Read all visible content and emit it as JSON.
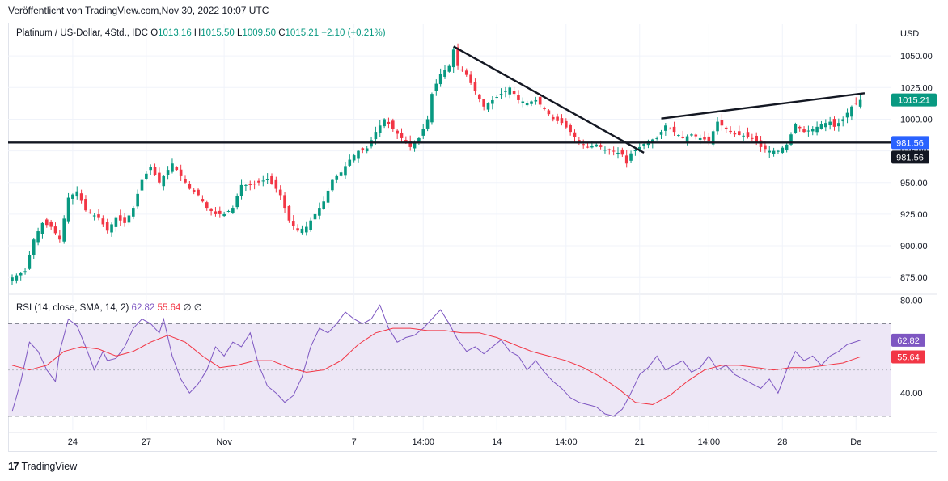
{
  "header": {
    "published": "Veröffentlicht von TradingView.com,Nov 30, 2022 10:07 UTC"
  },
  "legend": {
    "symbol": "Platinum / US-Dollar, 4Std., IDC",
    "open_label": "O",
    "open": "1013.16",
    "high_label": "H",
    "high": "1015.50",
    "low_label": "L",
    "low": "1009.50",
    "close_label": "C",
    "close": "1015.21",
    "change": "+2.10 (+0.21%)"
  },
  "rsi_legend": {
    "name": "RSI (14, close, SMA, 14, 2)",
    "rsi": "62.82",
    "sma": "55.64",
    "icon_a": "∅",
    "icon_b": "∅"
  },
  "footer": {
    "brand": "TradingView",
    "logo": "17"
  },
  "colors": {
    "up": "#089981",
    "down": "#f23645",
    "rsi_line": "#7e57c2",
    "rsi_sma": "#f23645",
    "rsi_band": "#ede7f6",
    "trendline": "#131722",
    "grid": "#f0f3fa"
  },
  "chart_data": [
    {
      "type": "candlestick",
      "currency_label": "USD",
      "y_ticks": [
        875,
        900,
        925,
        950,
        975,
        1000,
        1025,
        1050
      ],
      "y_tick_labels": [
        "875.00",
        "900.00",
        "925.00",
        "950.00",
        "975.00",
        "1000.00",
        "1025.00",
        "1050.00"
      ],
      "ylim": [
        863,
        1075
      ],
      "x_tick_labels": [
        {
          "label": "24",
          "bar": 14
        },
        {
          "label": "27",
          "bar": 31
        },
        {
          "label": "Nov",
          "bar": 49
        },
        {
          "label": "7",
          "bar": 79
        },
        {
          "label": "14:00",
          "bar": 95
        },
        {
          "label": "14",
          "bar": 112
        },
        {
          "label": "14:00",
          "bar": 128
        },
        {
          "label": "21",
          "bar": 145
        },
        {
          "label": "14:00",
          "bar": 161
        },
        {
          "label": "28",
          "bar": 178
        },
        {
          "label": "De",
          "bar": 195
        }
      ],
      "bar_count": 197,
      "anchors": [
        [
          0,
          875
        ],
        [
          3,
          880
        ],
        [
          5,
          905
        ],
        [
          7,
          918
        ],
        [
          9,
          915
        ],
        [
          11,
          905
        ],
        [
          13,
          938
        ],
        [
          15,
          943
        ],
        [
          17,
          928
        ],
        [
          20,
          922
        ],
        [
          22,
          912
        ],
        [
          24,
          922
        ],
        [
          26,
          918
        ],
        [
          28,
          930
        ],
        [
          30,
          952
        ],
        [
          32,
          962
        ],
        [
          34,
          950
        ],
        [
          37,
          965
        ],
        [
          39,
          955
        ],
        [
          41,
          945
        ],
        [
          43,
          940
        ],
        [
          45,
          930
        ],
        [
          47,
          925
        ],
        [
          49,
          925
        ],
        [
          51,
          930
        ],
        [
          53,
          948
        ],
        [
          55,
          948
        ],
        [
          57,
          950
        ],
        [
          59,
          953
        ],
        [
          61,
          945
        ],
        [
          62,
          940
        ],
        [
          64,
          920
        ],
        [
          66,
          912
        ],
        [
          68,
          915
        ],
        [
          70,
          925
        ],
        [
          72,
          935
        ],
        [
          74,
          952
        ],
        [
          76,
          958
        ],
        [
          78,
          968
        ],
        [
          80,
          975
        ],
        [
          82,
          977
        ],
        [
          84,
          990
        ],
        [
          86,
          1000
        ],
        [
          88,
          992
        ],
        [
          90,
          985
        ],
        [
          92,
          978
        ],
        [
          94,
          985
        ],
        [
          96,
          1000
        ],
        [
          97,
          1020
        ],
        [
          99,
          1036
        ],
        [
          101,
          1042
        ],
        [
          102,
          1055
        ],
        [
          103,
          1042
        ],
        [
          105,
          1035
        ],
        [
          107,
          1022
        ],
        [
          109,
          1010
        ],
        [
          111,
          1015
        ],
        [
          113,
          1020
        ],
        [
          115,
          1025
        ],
        [
          117,
          1015
        ],
        [
          119,
          1013
        ],
        [
          121,
          1015
        ],
        [
          123,
          1008
        ],
        [
          125,
          1000
        ],
        [
          127,
          997
        ],
        [
          129,
          990
        ],
        [
          131,
          982
        ],
        [
          133,
          978
        ],
        [
          135,
          980
        ],
        [
          137,
          976
        ],
        [
          139,
          975
        ],
        [
          141,
          972
        ],
        [
          142,
          965
        ],
        [
          143,
          973
        ],
        [
          145,
          978
        ],
        [
          147,
          983
        ],
        [
          149,
          985
        ],
        [
          151,
          995
        ],
        [
          153,
          990
        ],
        [
          155,
          985
        ],
        [
          157,
          988
        ],
        [
          159,
          985
        ],
        [
          161,
          983
        ],
        [
          163,
          998
        ],
        [
          165,
          992
        ],
        [
          167,
          988
        ],
        [
          169,
          987
        ],
        [
          171,
          985
        ],
        [
          173,
          978
        ],
        [
          175,
          975
        ],
        [
          177,
          975
        ],
        [
          179,
          980
        ],
        [
          181,
          996
        ],
        [
          183,
          990
        ],
        [
          185,
          992
        ],
        [
          187,
          996
        ],
        [
          189,
          998
        ],
        [
          190,
          994
        ],
        [
          192,
          1000
        ],
        [
          194,
          1010
        ],
        [
          196,
          1015.21
        ]
      ],
      "last_price_label": "1015.21",
      "horizontal_level": 981.56,
      "horizontal_level_label": "981.56",
      "trendlines": [
        {
          "from": [
            102,
            1057.5
          ],
          "to": [
            146,
            973.5
          ]
        },
        {
          "from": [
            150,
            1000.5
          ],
          "to": [
            197,
            1020.5
          ]
        }
      ]
    },
    {
      "type": "line",
      "name": "RSI (14, close, SMA, 14, 2)",
      "y_ticks": [
        40,
        80
      ],
      "y_tick_labels": [
        "40.00",
        "80.00"
      ],
      "ylim": [
        24,
        82
      ],
      "bands": [
        30,
        70
      ],
      "series": [
        {
          "name": "RSI",
          "anchors": [
            [
              0,
              32
            ],
            [
              2,
              45
            ],
            [
              4,
              62
            ],
            [
              6,
              58
            ],
            [
              8,
              50
            ],
            [
              10,
              45
            ],
            [
              11,
              58
            ],
            [
              13,
              72
            ],
            [
              15,
              69
            ],
            [
              17,
              60
            ],
            [
              19,
              50
            ],
            [
              21,
              58
            ],
            [
              22,
              54
            ],
            [
              24,
              55
            ],
            [
              26,
              60
            ],
            [
              28,
              68
            ],
            [
              30,
              72
            ],
            [
              32,
              70
            ],
            [
              34,
              66
            ],
            [
              35,
              72
            ],
            [
              37,
              56
            ],
            [
              39,
              46
            ],
            [
              41,
              40
            ],
            [
              43,
              44
            ],
            [
              45,
              50
            ],
            [
              47,
              60
            ],
            [
              49,
              56
            ],
            [
              51,
              62
            ],
            [
              53,
              60
            ],
            [
              55,
              66
            ],
            [
              57,
              52
            ],
            [
              59,
              43
            ],
            [
              61,
              40
            ],
            [
              63,
              36
            ],
            [
              65,
              39
            ],
            [
              67,
              47
            ],
            [
              69,
              60
            ],
            [
              71,
              68
            ],
            [
              73,
              66
            ],
            [
              75,
              70
            ],
            [
              77,
              75
            ],
            [
              79,
              72
            ],
            [
              81,
              70
            ],
            [
              83,
              72
            ],
            [
              85,
              78
            ],
            [
              87,
              68
            ],
            [
              89,
              62
            ],
            [
              91,
              64
            ],
            [
              93,
              65
            ],
            [
              95,
              68
            ],
            [
              97,
              72
            ],
            [
              99,
              76
            ],
            [
              101,
              70
            ],
            [
              103,
              63
            ],
            [
              105,
              58
            ],
            [
              107,
              60
            ],
            [
              109,
              57
            ],
            [
              111,
              60
            ],
            [
              113,
              63
            ],
            [
              115,
              58
            ],
            [
              117,
              56
            ],
            [
              119,
              50
            ],
            [
              121,
              54
            ],
            [
              123,
              49
            ],
            [
              125,
              45
            ],
            [
              127,
              42
            ],
            [
              129,
              38
            ],
            [
              131,
              36
            ],
            [
              133,
              35
            ],
            [
              135,
              34
            ],
            [
              137,
              31
            ],
            [
              139,
              30
            ],
            [
              141,
              33
            ],
            [
              143,
              40
            ],
            [
              145,
              48
            ],
            [
              147,
              51
            ],
            [
              149,
              56
            ],
            [
              151,
              50
            ],
            [
              153,
              52
            ],
            [
              155,
              54
            ],
            [
              157,
              49
            ],
            [
              159,
              51
            ],
            [
              161,
              56
            ],
            [
              163,
              50
            ],
            [
              165,
              52
            ],
            [
              167,
              48
            ],
            [
              169,
              46
            ],
            [
              171,
              44
            ],
            [
              173,
              42
            ],
            [
              175,
              46
            ],
            [
              177,
              40
            ],
            [
              179,
              50
            ],
            [
              181,
              58
            ],
            [
              183,
              54
            ],
            [
              185,
              56
            ],
            [
              187,
              52
            ],
            [
              189,
              56
            ],
            [
              191,
              58
            ],
            [
              193,
              61
            ],
            [
              196,
              62.82
            ]
          ]
        },
        {
          "name": "SMA",
          "anchors": [
            [
              0,
              52
            ],
            [
              4,
              50
            ],
            [
              8,
              52
            ],
            [
              12,
              58
            ],
            [
              16,
              60
            ],
            [
              20,
              59
            ],
            [
              24,
              56
            ],
            [
              28,
              58
            ],
            [
              32,
              62
            ],
            [
              36,
              65
            ],
            [
              40,
              62
            ],
            [
              44,
              56
            ],
            [
              48,
              51
            ],
            [
              52,
              52
            ],
            [
              56,
              54
            ],
            [
              60,
              54
            ],
            [
              64,
              51
            ],
            [
              68,
              49
            ],
            [
              72,
              50
            ],
            [
              76,
              54
            ],
            [
              80,
              61
            ],
            [
              84,
              66
            ],
            [
              88,
              68
            ],
            [
              92,
              68
            ],
            [
              96,
              67
            ],
            [
              100,
              67
            ],
            [
              104,
              66
            ],
            [
              108,
              66
            ],
            [
              112,
              64
            ],
            [
              116,
              61
            ],
            [
              120,
              58
            ],
            [
              124,
              56
            ],
            [
              128,
              54
            ],
            [
              132,
              51
            ],
            [
              136,
              47
            ],
            [
              140,
              42
            ],
            [
              144,
              36
            ],
            [
              148,
              35
            ],
            [
              152,
              39
            ],
            [
              156,
              45
            ],
            [
              160,
              50
            ],
            [
              164,
              52
            ],
            [
              168,
              52
            ],
            [
              172,
              51
            ],
            [
              176,
              50
            ],
            [
              180,
              51
            ],
            [
              184,
              51
            ],
            [
              188,
              52
            ],
            [
              192,
              53
            ],
            [
              196,
              55.64
            ]
          ]
        }
      ],
      "last_rsi_label": "62.82",
      "last_sma_label": "55.64"
    }
  ]
}
